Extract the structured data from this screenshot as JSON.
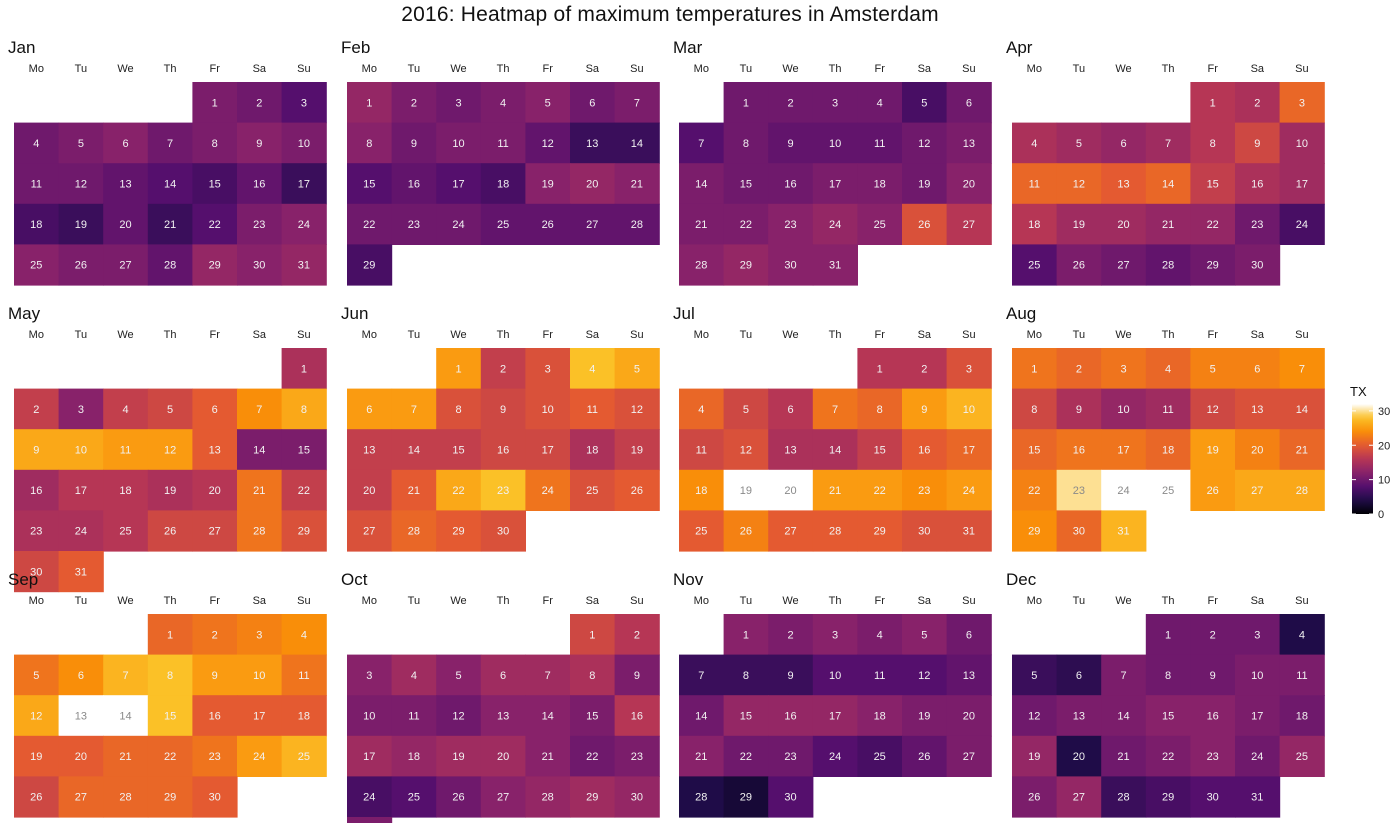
{
  "chart_data": {
    "type": "heatmap",
    "title": "2016: Heatmap of maximum temperatures in Amsterdam",
    "year": 2016,
    "weekdays": [
      "Mo",
      "Tu",
      "We",
      "Th",
      "Fr",
      "Sa",
      "Su"
    ],
    "legend": {
      "title": "TX",
      "ticks": [
        0,
        10,
        20,
        30
      ],
      "range": [
        0,
        32
      ]
    },
    "colormap": {
      "name": "magma",
      "stops": [
        "#000004",
        "#1f0c48",
        "#550f6d",
        "#88226a",
        "#b63655",
        "#e45a31",
        "#f98e09",
        "#fbc127",
        "#ffffff"
      ]
    },
    "months": [
      {
        "name": "Jan",
        "values": [
          11,
          10,
          8,
          10,
          11,
          12,
          10,
          11,
          12,
          11,
          10,
          10,
          9,
          8,
          7,
          9,
          6,
          7,
          6,
          9,
          6,
          8,
          11,
          12,
          12,
          11,
          11,
          9,
          13,
          12,
          13
        ]
      },
      {
        "name": "Feb",
        "values": [
          13,
          11,
          10,
          11,
          12,
          10,
          11,
          12,
          10,
          11,
          11,
          9,
          6,
          6,
          8,
          9,
          8,
          7,
          12,
          13,
          12,
          10,
          10,
          10,
          9,
          9,
          9,
          9,
          7
        ]
      },
      {
        "name": "Mar",
        "values": [
          10,
          10,
          10,
          10,
          7,
          10,
          8,
          10,
          9,
          9,
          9,
          10,
          11,
          11,
          10,
          10,
          11,
          11,
          10,
          12,
          11,
          11,
          12,
          13,
          12,
          19,
          16,
          12,
          13,
          12,
          12
        ]
      },
      {
        "name": "Apr",
        "values": [
          16,
          15,
          21,
          15,
          14,
          13,
          14,
          16,
          18,
          14,
          21,
          21,
          20,
          21,
          17,
          15,
          14,
          16,
          14,
          14,
          13,
          13,
          10,
          7,
          8,
          11,
          10,
          9,
          10,
          11
        ]
      },
      {
        "name": "May",
        "values": [
          15,
          17,
          12,
          17,
          18,
          20,
          24,
          26,
          26,
          26,
          25,
          25,
          20,
          11,
          11,
          14,
          16,
          16,
          15,
          16,
          22,
          17,
          15,
          15,
          16,
          18,
          18,
          22,
          19,
          18,
          20
        ]
      },
      {
        "name": "Jun",
        "values": [
          25,
          17,
          19,
          28,
          26,
          25,
          25,
          19,
          18,
          19,
          20,
          19,
          17,
          17,
          17,
          18,
          18,
          15,
          17,
          17,
          20,
          26,
          28,
          22,
          19,
          20,
          19,
          21,
          20,
          19
        ]
      },
      {
        "name": "Jul",
        "values": [
          16,
          16,
          19,
          21,
          18,
          16,
          22,
          21,
          25,
          27,
          18,
          19,
          15,
          15,
          17,
          20,
          21,
          24,
          32,
          33,
          25,
          25,
          24,
          25,
          20,
          23,
          20,
          20,
          20,
          19,
          19
        ]
      },
      {
        "name": "Aug",
        "values": [
          22,
          21,
          22,
          21,
          23,
          23,
          24,
          18,
          15,
          13,
          14,
          18,
          19,
          19,
          21,
          22,
          22,
          21,
          25,
          23,
          21,
          23,
          30,
          34,
          34,
          25,
          26,
          26,
          24,
          21,
          27
        ]
      },
      {
        "name": "Sep",
        "values": [
          21,
          22,
          23,
          24,
          22,
          24,
          27,
          28,
          25,
          25,
          22,
          26,
          33,
          33,
          28,
          20,
          20,
          20,
          20,
          20,
          21,
          21,
          22,
          25,
          27,
          18,
          21,
          21,
          21,
          20
        ]
      },
      {
        "name": "Oct",
        "values": [
          18,
          16,
          12,
          14,
          12,
          14,
          14,
          15,
          11,
          11,
          11,
          10,
          12,
          12,
          11,
          16,
          14,
          13,
          14,
          14,
          12,
          10,
          11,
          7,
          8,
          10,
          12,
          13,
          14,
          13,
          11
        ]
      },
      {
        "name": "Nov",
        "values": [
          12,
          11,
          12,
          11,
          12,
          10,
          6,
          6,
          6,
          8,
          8,
          8,
          9,
          10,
          13,
          13,
          13,
          12,
          11,
          11,
          12,
          10,
          10,
          8,
          7,
          9,
          11,
          4,
          3,
          8
        ]
      },
      {
        "name": "Dec",
        "values": [
          10,
          10,
          10,
          4,
          6,
          5,
          11,
          10,
          10,
          11,
          11,
          10,
          11,
          11,
          12,
          12,
          11,
          10,
          13,
          4,
          10,
          11,
          12,
          10,
          13,
          11,
          13,
          6,
          7,
          8,
          8
        ]
      }
    ]
  }
}
